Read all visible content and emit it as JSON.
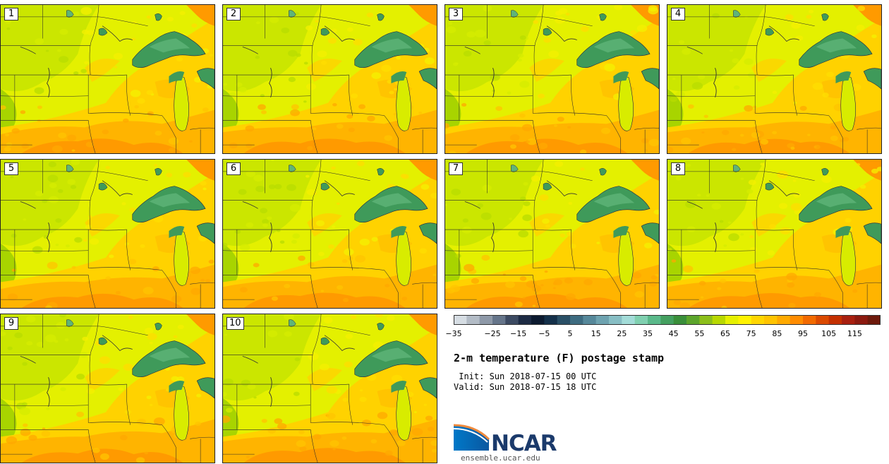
{
  "panels": [
    {
      "label": "1",
      "variant": 0
    },
    {
      "label": "2",
      "variant": 1
    },
    {
      "label": "3",
      "variant": 2
    },
    {
      "label": "4",
      "variant": 3
    },
    {
      "label": "5",
      "variant": 4
    },
    {
      "label": "6",
      "variant": 5
    },
    {
      "label": "7",
      "variant": 6
    },
    {
      "label": "8",
      "variant": 7
    },
    {
      "label": "9",
      "variant": 8
    },
    {
      "label": "10",
      "variant": 9
    }
  ],
  "legend": {
    "colors": [
      "#d6dde3",
      "#b3bcc6",
      "#8e99a8",
      "#66758a",
      "#3c4a62",
      "#1d2b44",
      "#0c1a30",
      "#14304a",
      "#2a4f66",
      "#3d6b80",
      "#56889a",
      "#6ea3b0",
      "#87bec4",
      "#a3dcd8",
      "#80d0b0",
      "#5ab98a",
      "#44a060",
      "#3a8f3a",
      "#5ca52c",
      "#8cbf1a",
      "#b8d800",
      "#e6f000",
      "#fff200",
      "#ffd600",
      "#ffc400",
      "#ffaa00",
      "#ff8c00",
      "#f26a00",
      "#db4a00",
      "#c43000",
      "#a92010",
      "#8c1a10",
      "#6e1a0c"
    ],
    "ticks": [
      "−35",
      "−25",
      "−15",
      "−5",
      "5",
      "15",
      "25",
      "35",
      "45",
      "55",
      "65",
      "75",
      "85",
      "95",
      "105",
      "115"
    ]
  },
  "title": "2-m temperature (F) postage stamp",
  "init": " Init: Sun 2018-07-15 00 UTC",
  "valid": "Valid: Sun 2018-07-15 18 UTC",
  "logo": {
    "name": "NCAR",
    "url": "ensemble.ucar.edu",
    "color": "#1b3a6b",
    "accent": "#0078c8"
  }
}
